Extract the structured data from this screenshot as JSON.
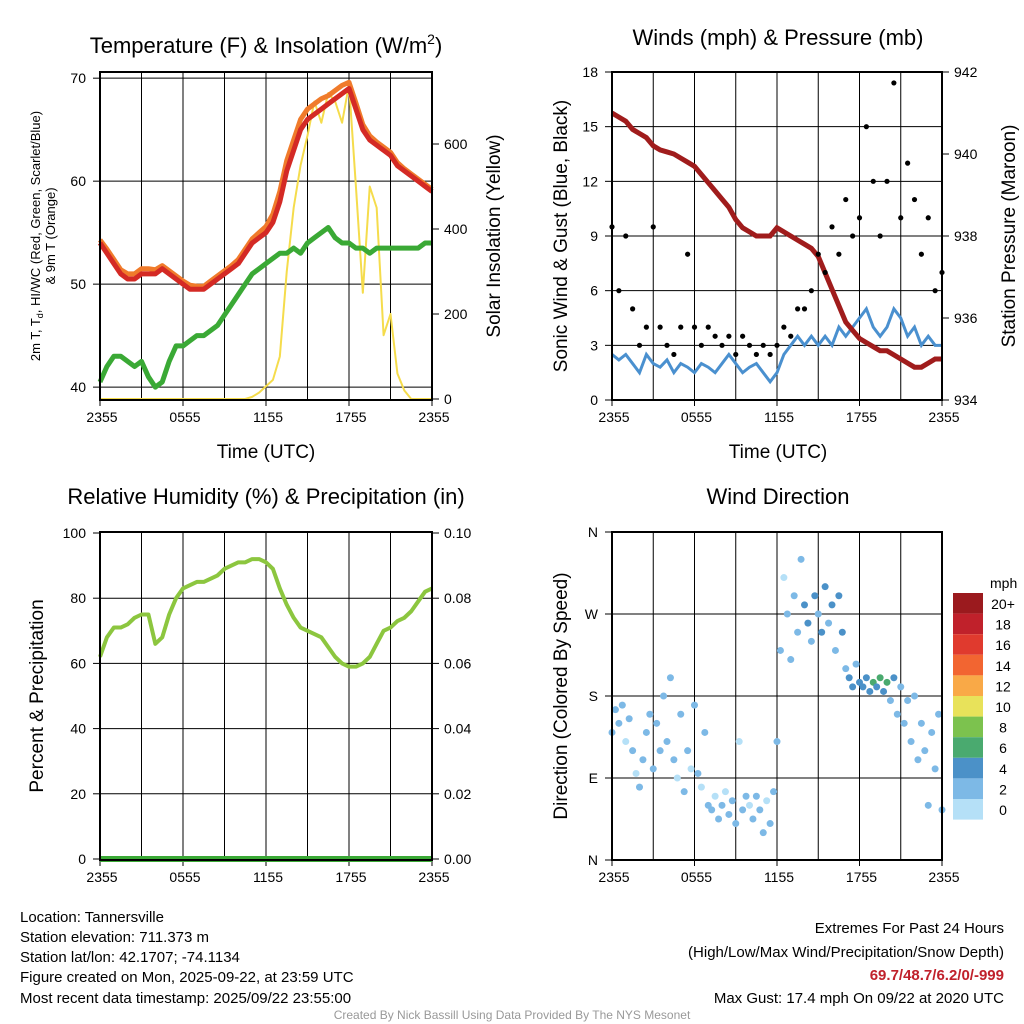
{
  "x_tick_labels": [
    "2355",
    "0555",
    "1155",
    "1755",
    "2355"
  ],
  "chart_data": [
    {
      "type": "line",
      "title": "Temperature (F) & Insolation (W/m",
      "title_sup": "2",
      "title_end": ")",
      "xlabel": "Time (UTC)",
      "ylabel_line1a": "2m T, T",
      "ylabel_line1_sub": "d",
      "ylabel_line1b": ", HI/WC (Red, Green, Scarlet/Blue)",
      "ylabel_line2": "& 9m T (Orange)",
      "ylabel_right": "Solar Insolation (Yellow)",
      "ylim": [
        38.75,
        70.6
      ],
      "ylim_right": [
        0,
        770
      ],
      "yticks": [
        "40",
        "50",
        "60",
        "70"
      ],
      "yticks_right": [
        "0",
        "200",
        "400",
        "600"
      ],
      "x_interval_minutes": 30,
      "series": [
        {
          "name": "2m T",
          "color": "#d42a25",
          "values": [
            54,
            53,
            52,
            51,
            50.5,
            50.5,
            51,
            51,
            51,
            51.5,
            51,
            50.5,
            50,
            49.5,
            49.5,
            49.5,
            50,
            50.5,
            51,
            51.5,
            52,
            53,
            54,
            54.5,
            55,
            56,
            58,
            61,
            63,
            65,
            66,
            66.5,
            67,
            67.5,
            68,
            68.5,
            69,
            67,
            65,
            64,
            63.5,
            63,
            62.5,
            61.5,
            61,
            60.5,
            60,
            59.5,
            59
          ]
        },
        {
          "name": "9m T",
          "color": "#f07b2b",
          "values": [
            54.3,
            53.4,
            52.4,
            51.4,
            51,
            51,
            51.5,
            51.5,
            51.4,
            51.8,
            51.3,
            50.8,
            50.3,
            49.9,
            49.8,
            49.8,
            50.3,
            50.8,
            51.3,
            51.8,
            52.4,
            53.4,
            54.4,
            55,
            55.6,
            56.8,
            59,
            62,
            64,
            66,
            67,
            67.5,
            68,
            68.3,
            68.8,
            69.3,
            69.6,
            67.6,
            65.5,
            64.4,
            63.8,
            63.3,
            62.8,
            61.8,
            61.2,
            60.7,
            60.2,
            59.7,
            59.2
          ]
        },
        {
          "name": "Td",
          "color": "#3aa935",
          "values": [
            40.5,
            42,
            43,
            43,
            42.5,
            42,
            42.5,
            41,
            40,
            40.5,
            42.5,
            44,
            44,
            44.5,
            45,
            45,
            45.5,
            46,
            47,
            48,
            49,
            50,
            51,
            51.5,
            52,
            52.5,
            53,
            53,
            53.5,
            53,
            54,
            54.5,
            55,
            55.5,
            54.5,
            54,
            54,
            53.5,
            53.5,
            53,
            53.5,
            53.5,
            53.5,
            53.5,
            53.5,
            53.5,
            53.5,
            54,
            54
          ]
        },
        {
          "name": "Solar Insolation",
          "axis": "right",
          "color": "#f5dc4c",
          "values": [
            0,
            0,
            0,
            0,
            0,
            0,
            0,
            0,
            0,
            0,
            0,
            0,
            0,
            0,
            0,
            0,
            0,
            0,
            0,
            0,
            0,
            0,
            5,
            15,
            30,
            45,
            100,
            300,
            450,
            550,
            620,
            700,
            650,
            720,
            700,
            650,
            740,
            500,
            250,
            500,
            450,
            150,
            200,
            60,
            20,
            0,
            0,
            0,
            0
          ]
        }
      ]
    },
    {
      "type": "line",
      "title": "Winds (mph) & Pressure (mb)",
      "xlabel": "Time (UTC)",
      "ylabel": "Sonic Wind & Gust (Blue, Black)",
      "ylabel_right": "Station Pressure (Maroon)",
      "ylim": [
        0,
        18
      ],
      "ylim_right": [
        934,
        942
      ],
      "yticks": [
        "0",
        "3",
        "6",
        "9",
        "12",
        "15",
        "18"
      ],
      "yticks_right": [
        "934",
        "936",
        "938",
        "940",
        "942"
      ],
      "x_interval_minutes": 30,
      "series": [
        {
          "name": "Sonic Wind",
          "color": "#4a90cf",
          "values": [
            2.5,
            2.2,
            2.5,
            2,
            1.5,
            2.5,
            2,
            1.8,
            2.2,
            1.5,
            2,
            1.8,
            1.5,
            2,
            1.8,
            1.5,
            2,
            2.5,
            2,
            1.5,
            1.8,
            2,
            1.5,
            1,
            1.5,
            2.5,
            3,
            3.5,
            3,
            3.5,
            3,
            3.5,
            3,
            4,
            3.5,
            4,
            4.5,
            5,
            4,
            3.5,
            4,
            5,
            4.5,
            3.5,
            4,
            3,
            3.5,
            3,
            3
          ]
        },
        {
          "name": "Gust",
          "type": "scatter",
          "color": "#000000",
          "values": [
            9.5,
            6,
            9,
            5,
            3,
            4,
            9.5,
            4,
            3,
            2.5,
            4,
            8,
            4,
            3,
            4,
            3.5,
            3,
            3.5,
            2.5,
            3.5,
            3,
            2.5,
            3,
            2.5,
            3,
            4,
            3.5,
            5,
            5,
            6,
            8,
            7,
            9.5,
            8,
            11,
            9,
            10,
            15,
            12,
            9,
            12,
            17.4,
            10,
            13,
            11,
            8,
            10,
            6,
            7
          ]
        },
        {
          "name": "Station Pressure",
          "axis": "right",
          "color": "#a01c1c",
          "values": [
            941,
            940.9,
            940.8,
            940.6,
            940.5,
            940.4,
            940.2,
            940.1,
            940.05,
            940,
            939.9,
            939.8,
            939.7,
            939.5,
            939.3,
            939.1,
            938.9,
            938.7,
            938.4,
            938.2,
            938.1,
            938.0,
            938.0,
            938.0,
            938.2,
            938.1,
            938.0,
            937.9,
            937.8,
            937.7,
            937.5,
            937.1,
            936.7,
            936.3,
            935.9,
            935.7,
            935.5,
            935.4,
            935.3,
            935.2,
            935.2,
            935.1,
            935.0,
            934.9,
            934.8,
            934.8,
            934.9,
            935.0,
            935.0
          ]
        }
      ]
    },
    {
      "type": "line",
      "title": "Relative Humidity (%) & Precipitation (in)",
      "ylabel": "Percent & Precipitation",
      "ylim": [
        0,
        100
      ],
      "ylim_right": [
        0,
        0.1
      ],
      "yticks": [
        "0",
        "20",
        "40",
        "60",
        "80",
        "100"
      ],
      "yticks_right": [
        "0.00",
        "0.02",
        "0.04",
        "0.06",
        "0.08",
        "0.10"
      ],
      "x_interval_minutes": 30,
      "series": [
        {
          "name": "Relative Humidity",
          "color": "#8cc63f",
          "values": [
            62,
            68,
            71,
            71,
            72,
            74,
            75,
            75,
            66,
            68,
            75,
            80,
            83,
            84,
            85,
            85,
            86,
            87,
            89,
            90,
            91,
            91,
            92,
            92,
            91,
            89,
            83,
            78,
            74,
            71,
            70,
            69,
            68,
            65,
            62,
            60,
            59,
            59,
            60,
            62,
            66,
            70,
            71,
            73,
            74,
            76,
            79,
            82,
            83
          ]
        },
        {
          "name": "Precipitation",
          "axis": "right",
          "color": "#3aa935",
          "values": [
            0,
            0,
            0,
            0,
            0,
            0,
            0,
            0,
            0,
            0,
            0,
            0,
            0,
            0,
            0,
            0,
            0,
            0,
            0,
            0,
            0,
            0,
            0,
            0,
            0,
            0,
            0,
            0,
            0,
            0,
            0,
            0,
            0,
            0,
            0,
            0,
            0,
            0,
            0,
            0,
            0,
            0,
            0,
            0,
            0,
            0,
            0,
            0,
            0
          ]
        }
      ]
    },
    {
      "type": "scatter",
      "title": "Wind Direction",
      "ylabel": "Direction (Colored By Speed)",
      "ylim": [
        0,
        360
      ],
      "yticks": [
        "N",
        "E",
        "S",
        "W",
        "N"
      ],
      "colorbar_title": "mph",
      "colorbar_labels": [
        "20+",
        "18",
        "16",
        "14",
        "12",
        "10",
        "8",
        "6",
        "4",
        "2",
        "0"
      ],
      "colorbar_colors": [
        "#9b1a1e",
        "#c0212b",
        "#e03a2e",
        "#f26531",
        "#f9a947",
        "#e8e25a",
        "#7cc24e",
        "#4aaa6f",
        "#4b91c8",
        "#7db9e6",
        "#b5e0f7"
      ],
      "points_index_dir_speed": [
        [
          0,
          140,
          2.5
        ],
        [
          0.5,
          165,
          2
        ],
        [
          1,
          150,
          2.5
        ],
        [
          1.5,
          170,
          2
        ],
        [
          2,
          130,
          1.5
        ],
        [
          2.5,
          155,
          3
        ],
        [
          3,
          120,
          2
        ],
        [
          3.5,
          95,
          1.5
        ],
        [
          4,
          80,
          2
        ],
        [
          4.5,
          110,
          2.5
        ],
        [
          5,
          140,
          2
        ],
        [
          5.5,
          160,
          3
        ],
        [
          6,
          100,
          2
        ],
        [
          6.5,
          150,
          2.5
        ],
        [
          7,
          120,
          2
        ],
        [
          7.5,
          180,
          3
        ],
        [
          8,
          130,
          2
        ],
        [
          8.5,
          200,
          3
        ],
        [
          9,
          110,
          2
        ],
        [
          9.5,
          90,
          1.5
        ],
        [
          10,
          160,
          3
        ],
        [
          10.5,
          75,
          2
        ],
        [
          11,
          120,
          2.5
        ],
        [
          11.5,
          100,
          1.5
        ],
        [
          12,
          170,
          3
        ],
        [
          12.5,
          95,
          2
        ],
        [
          13,
          80,
          1.5
        ],
        [
          13.5,
          140,
          2.5
        ],
        [
          14,
          60,
          2
        ],
        [
          14.5,
          55,
          3
        ],
        [
          15,
          70,
          1.5
        ],
        [
          15.5,
          45,
          2
        ],
        [
          16,
          60,
          2.5
        ],
        [
          16.5,
          75,
          1.5
        ],
        [
          17,
          50,
          2
        ],
        [
          17.5,
          65,
          3
        ],
        [
          18,
          40,
          2
        ],
        [
          18.5,
          130,
          1.5
        ],
        [
          19,
          55,
          2
        ],
        [
          19.5,
          70,
          2.5
        ],
        [
          20,
          60,
          1.5
        ],
        [
          20.5,
          45,
          2
        ],
        [
          21,
          70,
          2
        ],
        [
          21.5,
          55,
          3
        ],
        [
          22,
          30,
          2
        ],
        [
          22.5,
          65,
          1.5
        ],
        [
          23,
          40,
          2.5
        ],
        [
          23.5,
          75,
          2
        ],
        [
          24,
          130,
          2.5
        ],
        [
          24.5,
          230,
          2
        ],
        [
          25,
          310,
          1.5
        ],
        [
          25.5,
          270,
          3
        ],
        [
          26,
          220,
          2.5
        ],
        [
          26.5,
          290,
          3.5
        ],
        [
          27,
          250,
          3
        ],
        [
          27.5,
          330,
          2
        ],
        [
          28,
          280,
          4
        ],
        [
          28.5,
          260,
          4.5
        ],
        [
          29,
          240,
          3
        ],
        [
          29.5,
          290,
          4
        ],
        [
          30,
          270,
          3.5
        ],
        [
          30.5,
          250,
          4
        ],
        [
          31,
          300,
          4.5
        ],
        [
          31.5,
          260,
          3
        ],
        [
          32,
          280,
          4
        ],
        [
          32.5,
          230,
          3.5
        ],
        [
          33,
          290,
          4
        ],
        [
          33.5,
          250,
          4.5
        ],
        [
          34,
          210,
          3
        ],
        [
          34.5,
          200,
          4
        ],
        [
          35,
          190,
          4.5
        ],
        [
          35.5,
          215,
          3.5
        ],
        [
          36,
          195,
          5
        ],
        [
          36.5,
          190,
          4
        ],
        [
          37,
          200,
          5.5
        ],
        [
          37.5,
          185,
          4
        ],
        [
          38,
          195,
          6
        ],
        [
          38.5,
          190,
          5
        ],
        [
          39,
          200,
          6.5
        ],
        [
          39.5,
          185,
          4
        ],
        [
          40,
          195,
          6
        ],
        [
          40.5,
          175,
          3.5
        ],
        [
          41,
          200,
          5
        ],
        [
          41.5,
          160,
          3
        ],
        [
          42,
          190,
          2.5
        ],
        [
          42.5,
          150,
          3.5
        ],
        [
          43,
          175,
          2
        ],
        [
          43.5,
          130,
          2.5
        ],
        [
          44,
          180,
          3
        ],
        [
          44.5,
          110,
          2
        ],
        [
          45,
          150,
          3
        ],
        [
          45.5,
          120,
          2.5
        ],
        [
          46,
          60,
          2
        ],
        [
          46.5,
          140,
          3
        ],
        [
          47,
          100,
          2
        ],
        [
          47.5,
          160,
          2.5
        ],
        [
          48,
          55,
          3
        ]
      ]
    }
  ],
  "footer": {
    "location": "Location: Tannersville",
    "elevation": "Station elevation: 711.373 m",
    "latlon": "Station lat/lon: 42.1707; -74.1134",
    "created": "Figure created on Mon, 2025-09-22, at 23:59 UTC",
    "recent": "Most recent data timestamp: 2025/09/22 23:55:00",
    "extremes_title": "Extremes For Past 24 Hours",
    "extremes_legend": "(High/Low/Max Wind/Precipitation/Snow Depth)",
    "extremes_values": "69.7/48.7/6.2/0/-999",
    "extremes_color": "#c0212b",
    "max_gust": "Max Gust: 17.4 mph On 09/22 at 2020 UTC",
    "credit": "Created By Nick Bassill Using Data Provided By The NYS Mesonet"
  }
}
